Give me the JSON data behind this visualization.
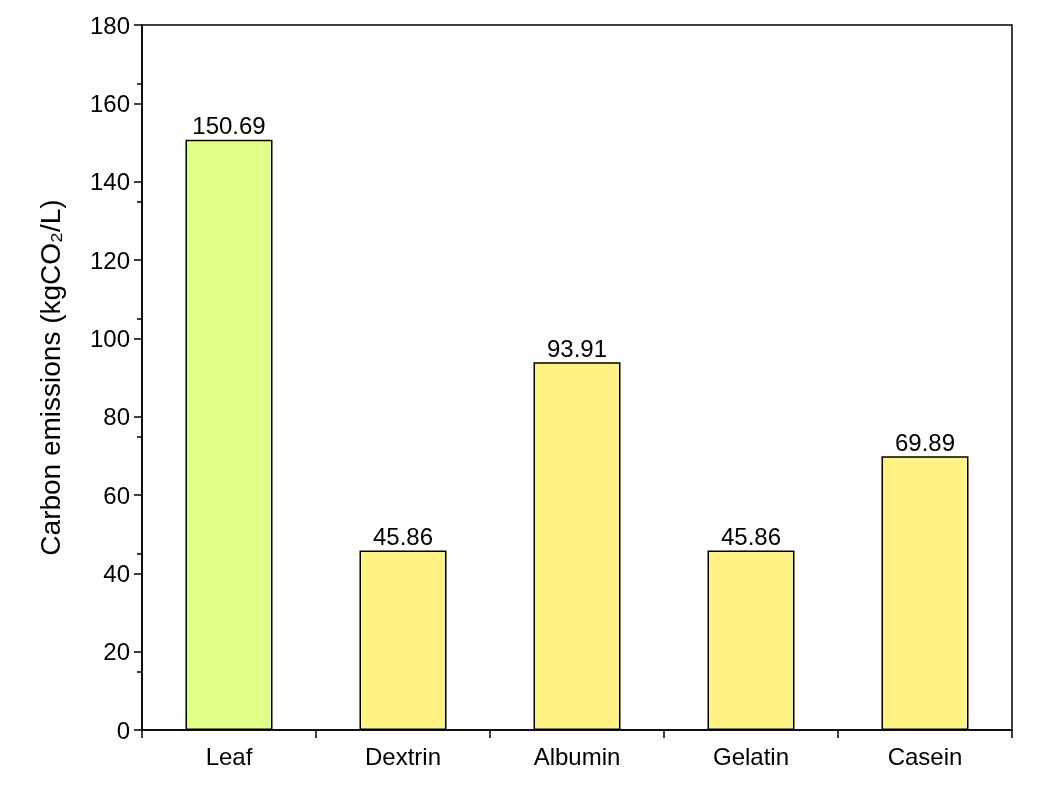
{
  "chart_data": {
    "type": "bar",
    "ylabel": "Carbon emissions (kgCO₂/L)",
    "categories": [
      "Leaf",
      "Dextrin",
      "Albumin",
      "Gelatin",
      "Casein"
    ],
    "values": [
      150.69,
      45.86,
      93.91,
      45.86,
      69.89
    ],
    "colors": [
      "#e1ff88",
      "#fff386",
      "#fff386",
      "#fff386",
      "#fff386"
    ],
    "ylim": [
      0,
      180
    ],
    "yticks": [
      0,
      20,
      40,
      60,
      80,
      100,
      120,
      140,
      160,
      180
    ],
    "data_labels": true
  }
}
